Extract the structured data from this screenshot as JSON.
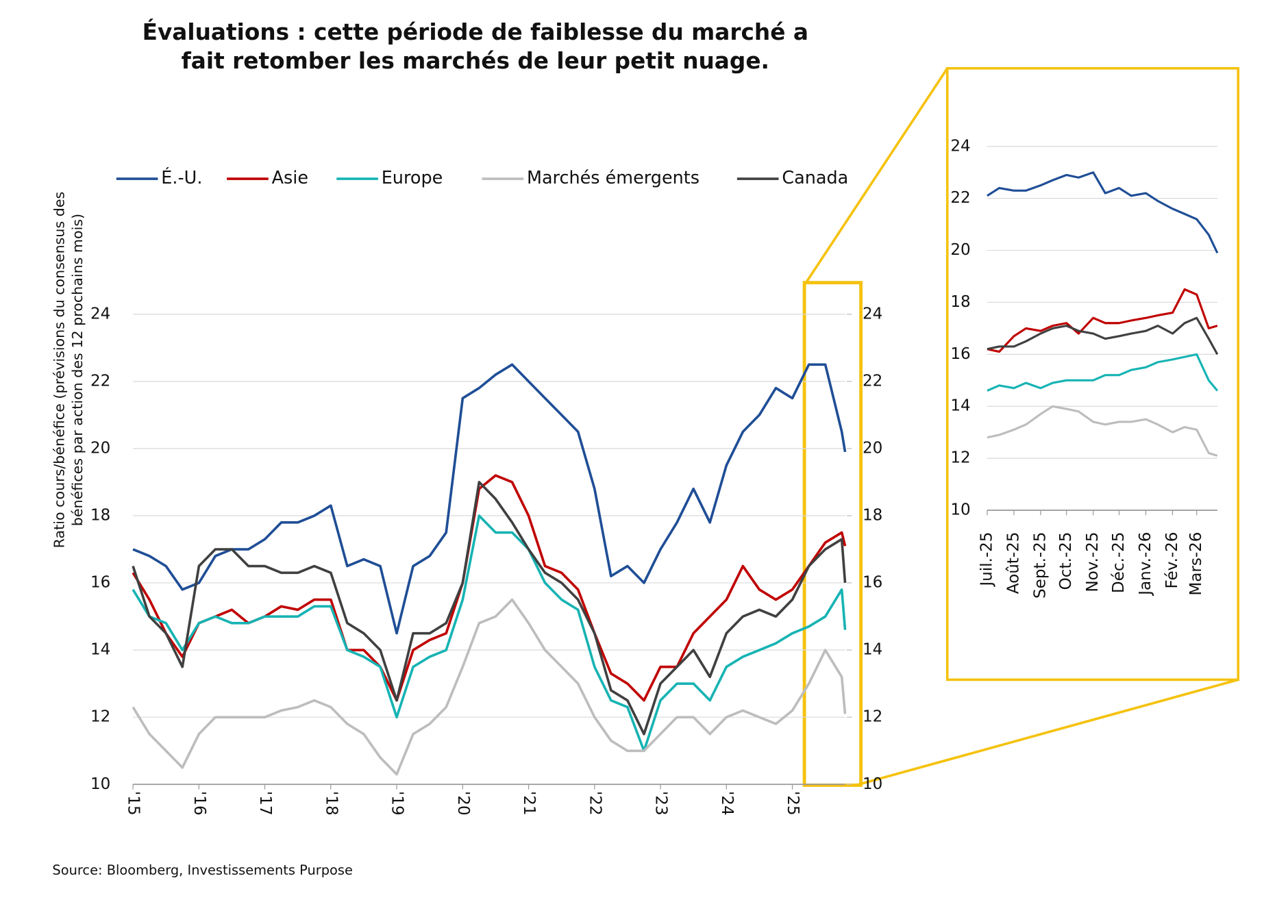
{
  "chart_data": [
    {
      "type": "line",
      "title": [
        "Évaluations : cette période de faiblesse du marché a",
        "fait retomber les marchés de leur petit nuage."
      ],
      "y_label": [
        "Ratio cours/bénéfice (prévisions du consensus des",
        "bénéfices par action des 12 prochains mois)"
      ],
      "source": "Source: Bloomberg, Investissements Purpose",
      "x": [
        2015,
        2015.25,
        2015.5,
        2015.75,
        2016,
        2016.25,
        2016.5,
        2016.75,
        2017,
        2017.25,
        2017.5,
        2017.75,
        2018,
        2018.25,
        2018.5,
        2018.75,
        2019,
        2019.25,
        2019.5,
        2019.75,
        2020,
        2020.25,
        2020.5,
        2020.75,
        2021,
        2021.25,
        2021.5,
        2021.75,
        2022,
        2022.25,
        2022.5,
        2022.75,
        2023,
        2023.25,
        2023.5,
        2023.75,
        2024,
        2024.25,
        2024.5,
        2024.75,
        2025,
        2025.25,
        2025.5,
        2025.75,
        2025.8
      ],
      "xlim": [
        2015,
        2025.8
      ],
      "xticks": [
        {
          "value": 2015,
          "label": "'15"
        },
        {
          "value": 2016,
          "label": "'16"
        },
        {
          "value": 2017,
          "label": "'17"
        },
        {
          "value": 2018,
          "label": "'18"
        },
        {
          "value": 2019,
          "label": "'19"
        },
        {
          "value": 2020,
          "label": "'20"
        },
        {
          "value": 2021,
          "label": "'21"
        },
        {
          "value": 2022,
          "label": "'22"
        },
        {
          "value": 2023,
          "label": "'23"
        },
        {
          "value": 2024,
          "label": "'24"
        },
        {
          "value": 2025,
          "label": "'25"
        }
      ],
      "ylim": [
        10,
        24
      ],
      "yticks": [
        10,
        12,
        14,
        16,
        18,
        20,
        22,
        24
      ],
      "y2lim": [
        10,
        24
      ],
      "y2ticks": [
        10,
        12,
        14,
        16,
        18,
        20,
        22,
        24
      ],
      "grid": true,
      "series": [
        {
          "name": "É.-U.",
          "color": "#1f4e96",
          "values": [
            17.0,
            16.8,
            16.5,
            15.8,
            16.0,
            16.8,
            17.0,
            17.0,
            17.3,
            17.8,
            17.8,
            18.0,
            18.3,
            16.5,
            16.7,
            16.5,
            14.5,
            16.5,
            16.8,
            17.5,
            21.5,
            21.8,
            22.2,
            22.5,
            22.0,
            21.5,
            21.0,
            20.5,
            18.8,
            16.2,
            16.5,
            16.0,
            17.0,
            17.8,
            18.8,
            17.8,
            19.5,
            20.5,
            21.0,
            21.8,
            21.5,
            22.5,
            22.5,
            20.5,
            19.9
          ]
        },
        {
          "name": "Asie",
          "color": "#c00000",
          "values": [
            16.3,
            15.5,
            14.5,
            13.8,
            14.8,
            15.0,
            15.2,
            14.8,
            15.0,
            15.3,
            15.2,
            15.5,
            15.5,
            14.0,
            14.0,
            13.5,
            12.5,
            14.0,
            14.3,
            14.5,
            16.0,
            18.8,
            19.2,
            19.0,
            18.0,
            16.5,
            16.3,
            15.8,
            14.5,
            13.3,
            13.0,
            12.5,
            13.5,
            13.5,
            14.5,
            15.0,
            15.5,
            16.5,
            15.8,
            15.5,
            15.8,
            16.5,
            17.2,
            17.5,
            17.1
          ]
        },
        {
          "name": "Europe",
          "color": "#17b3b3",
          "values": [
            15.8,
            15.0,
            14.8,
            14.0,
            14.8,
            15.0,
            14.8,
            14.8,
            15.0,
            15.0,
            15.0,
            15.3,
            15.3,
            14.0,
            13.8,
            13.5,
            12.0,
            13.5,
            13.8,
            14.0,
            15.5,
            18.0,
            17.5,
            17.5,
            17.0,
            16.0,
            15.5,
            15.2,
            13.5,
            12.5,
            12.3,
            11.0,
            12.5,
            13.0,
            13.0,
            12.5,
            13.5,
            13.8,
            14.0,
            14.2,
            14.5,
            14.7,
            15.0,
            15.8,
            14.6
          ]
        },
        {
          "name": "Marchés émergents",
          "color": "#bdbdbd",
          "values": [
            12.3,
            11.5,
            11.0,
            10.5,
            11.5,
            12.0,
            12.0,
            12.0,
            12.0,
            12.2,
            12.3,
            12.5,
            12.3,
            11.8,
            11.5,
            10.8,
            10.3,
            11.5,
            11.8,
            12.3,
            13.5,
            14.8,
            15.0,
            15.5,
            14.8,
            14.0,
            13.5,
            13.0,
            12.0,
            11.3,
            11.0,
            11.0,
            11.5,
            12.0,
            12.0,
            11.5,
            12.0,
            12.2,
            12.0,
            11.8,
            12.2,
            13.0,
            14.0,
            13.2,
            12.1
          ]
        },
        {
          "name": "Canada",
          "color": "#404040",
          "values": [
            16.5,
            15.0,
            14.5,
            13.5,
            16.5,
            17.0,
            17.0,
            16.5,
            16.5,
            16.3,
            16.3,
            16.5,
            16.3,
            14.8,
            14.5,
            14.0,
            12.5,
            14.5,
            14.5,
            14.8,
            16.0,
            19.0,
            18.5,
            17.8,
            17.0,
            16.3,
            16.0,
            15.5,
            14.5,
            12.8,
            12.5,
            11.5,
            13.0,
            13.5,
            14.0,
            13.2,
            14.5,
            15.0,
            15.2,
            15.0,
            15.5,
            16.5,
            17.0,
            17.3,
            16.0
          ]
        }
      ]
    },
    {
      "type": "line",
      "x": [
        "2025-07-01",
        "2025-07-15",
        "2025-08-01",
        "2025-08-15",
        "2025-09-01",
        "2025-09-15",
        "2025-10-01",
        "2025-10-15",
        "2025-11-01",
        "2025-11-15",
        "2025-12-01",
        "2025-12-15",
        "2026-01-01",
        "2026-01-15",
        "2026-02-01",
        "2026-02-15",
        "2026-03-01",
        "2026-03-15",
        "2026-03-25"
      ],
      "xlim": [
        "2025-07-01",
        "2026-03-25"
      ],
      "xticks": [
        {
          "value": "2025-07-01",
          "label": "Juil.-25"
        },
        {
          "value": "2025-08-01",
          "label": "Août-25"
        },
        {
          "value": "2025-09-01",
          "label": "Sept.-25"
        },
        {
          "value": "2025-10-01",
          "label": "Oct.-25"
        },
        {
          "value": "2025-11-01",
          "label": "Nov.-25"
        },
        {
          "value": "2025-12-01",
          "label": "Déc.-25"
        },
        {
          "value": "2026-01-01",
          "label": "Janv.-26"
        },
        {
          "value": "2026-02-01",
          "label": "Fév.-26"
        },
        {
          "value": "2026-03-01",
          "label": "Mars-26"
        }
      ],
      "ylim": [
        10,
        24
      ],
      "yticks": [
        10,
        12,
        14,
        16,
        18,
        20,
        22,
        24
      ],
      "grid": true,
      "series": [
        {
          "color": "#1f4e96",
          "values": [
            22.1,
            22.4,
            22.3,
            22.3,
            22.5,
            22.7,
            22.9,
            22.8,
            23.0,
            22.2,
            22.4,
            22.1,
            22.2,
            21.9,
            21.6,
            21.4,
            21.2,
            20.6,
            19.9
          ]
        },
        {
          "color": "#c00000",
          "values": [
            16.2,
            16.1,
            16.7,
            17.0,
            16.9,
            17.1,
            17.2,
            16.8,
            17.4,
            17.2,
            17.2,
            17.3,
            17.4,
            17.5,
            17.6,
            18.5,
            18.3,
            17.0,
            17.1
          ]
        },
        {
          "color": "#17b3b3",
          "values": [
            14.6,
            14.8,
            14.7,
            14.9,
            14.7,
            14.9,
            15.0,
            15.0,
            15.0,
            15.2,
            15.2,
            15.4,
            15.5,
            15.7,
            15.8,
            15.9,
            16.0,
            15.0,
            14.6
          ]
        },
        {
          "color": "#bdbdbd",
          "values": [
            12.8,
            12.9,
            13.1,
            13.3,
            13.7,
            14.0,
            13.9,
            13.8,
            13.4,
            13.3,
            13.4,
            13.4,
            13.5,
            13.3,
            13.0,
            13.2,
            13.1,
            12.2,
            12.1
          ]
        },
        {
          "color": "#404040",
          "values": [
            16.2,
            16.3,
            16.3,
            16.5,
            16.8,
            17.0,
            17.1,
            16.9,
            16.8,
            16.6,
            16.7,
            16.8,
            16.9,
            17.1,
            16.8,
            17.2,
            17.4,
            16.6,
            16.0
          ]
        }
      ]
    }
  ]
}
